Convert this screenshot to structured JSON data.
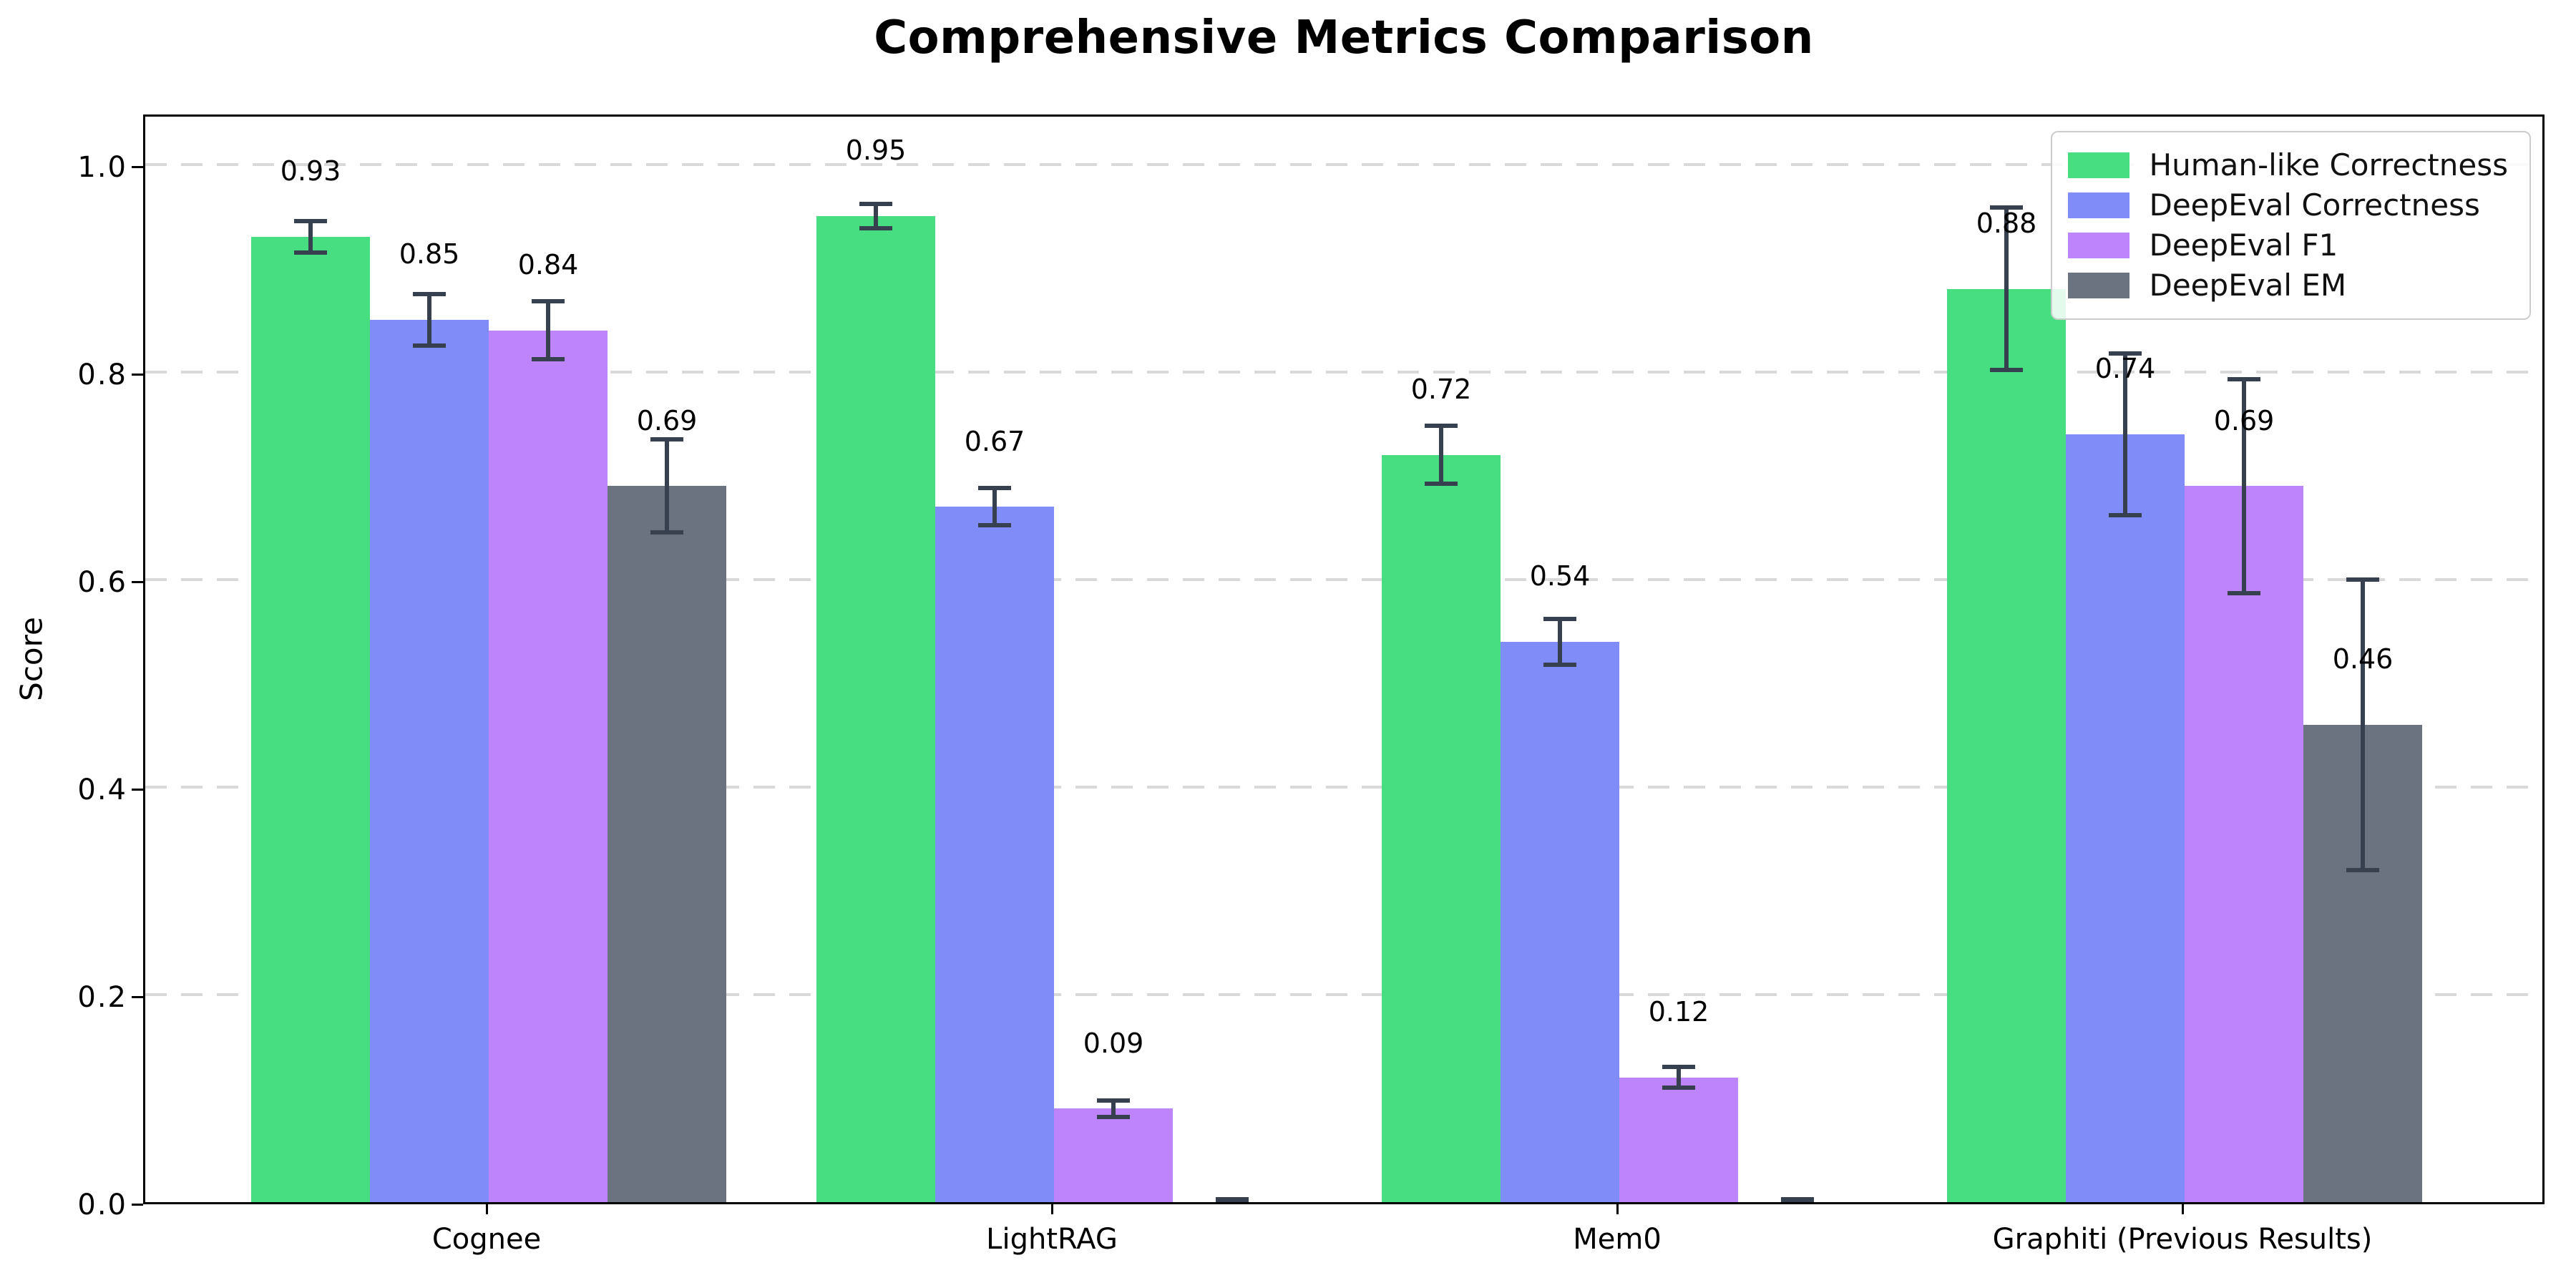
{
  "chart_data": {
    "type": "bar",
    "title": "Comprehensive Metrics Comparison",
    "ylabel": "Score",
    "xlabel": "",
    "categories": [
      "Cognee",
      "LightRAG",
      "Mem0",
      "Graphiti (Previous Results)"
    ],
    "series": [
      {
        "name": "Human-like Correctness",
        "color": "#46de81",
        "values": [
          0.93,
          0.95,
          0.72,
          0.88
        ],
        "errors": [
          0.015,
          0.012,
          0.028,
          0.078
        ],
        "labels": [
          "0.93",
          "0.95",
          "0.72",
          "0.88"
        ]
      },
      {
        "name": "DeepEval Correctness",
        "color": "#808cf8",
        "values": [
          0.85,
          0.67,
          0.54,
          0.74
        ],
        "errors": [
          0.025,
          0.018,
          0.022,
          0.078
        ],
        "labels": [
          "0.85",
          "0.67",
          "0.54",
          "0.74"
        ]
      },
      {
        "name": "DeepEval F1",
        "color": "#bd84fb",
        "values": [
          0.84,
          0.09,
          0.12,
          0.69
        ],
        "errors": [
          0.028,
          0.008,
          0.01,
          0.103
        ],
        "labels": [
          "0.84",
          "0.09",
          "0.12",
          "0.69"
        ]
      },
      {
        "name": "DeepEval EM",
        "color": "#6b7280",
        "values": [
          0.69,
          0.0,
          0.0,
          0.46
        ],
        "errors": [
          0.045,
          0.003,
          0.003,
          0.14
        ],
        "labels": [
          "0.69",
          "",
          "",
          "0.46"
        ]
      }
    ],
    "yticks": [
      "0.0",
      "0.2",
      "0.4",
      "0.6",
      "0.8",
      "1.0"
    ],
    "ylim": [
      0,
      1.05
    ],
    "grid": "horizontal-dashed",
    "legend_position": "upper-right",
    "error_bar_color": "#36404e"
  }
}
